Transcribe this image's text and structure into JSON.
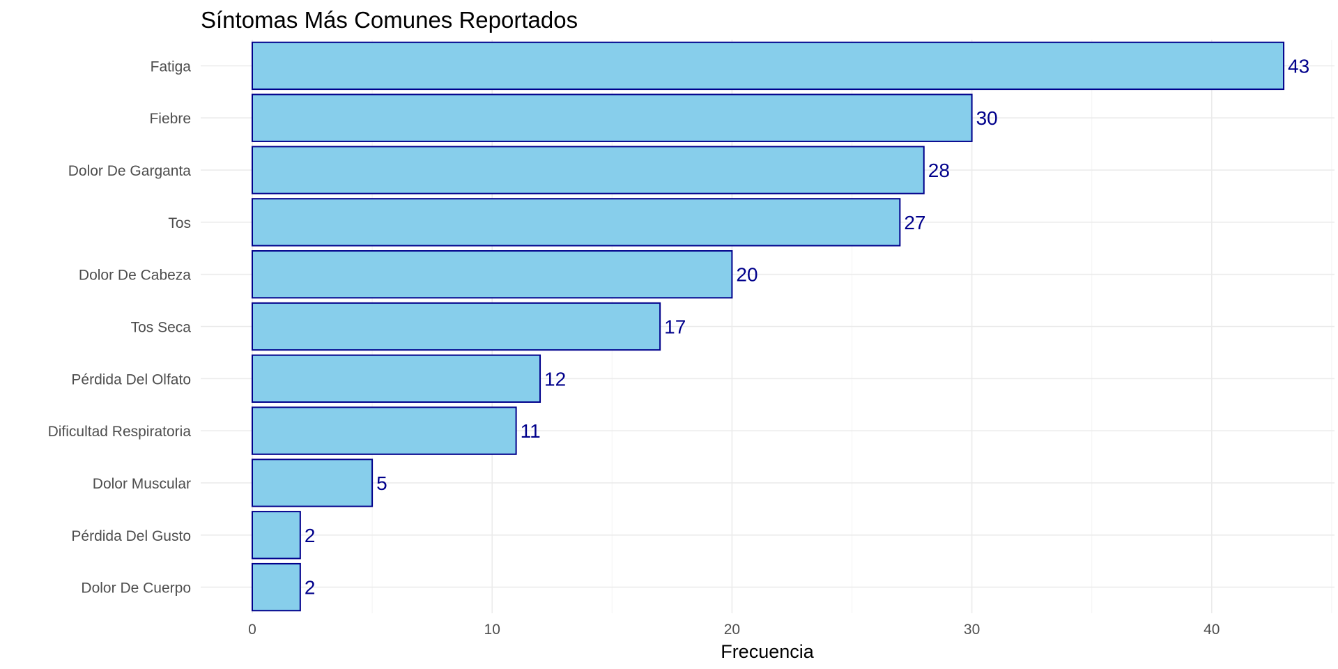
{
  "chart_data": {
    "type": "bar",
    "orientation": "horizontal",
    "title": "Síntomas Más Comunes Reportados",
    "xlabel": "Frecuencia",
    "ylabel": "",
    "categories": [
      "Fatiga",
      "Fiebre",
      "Dolor De Garganta",
      "Tos",
      "Dolor De Cabeza",
      "Tos Seca",
      "Pérdida Del Olfato",
      "Dificultad Respiratoria",
      "Dolor Muscular",
      "Pérdida Del Gusto",
      "Dolor De Cuerpo"
    ],
    "values": [
      43,
      30,
      28,
      27,
      20,
      17,
      12,
      11,
      5,
      2,
      2
    ],
    "data_labels": [
      "43",
      "30",
      "28",
      "27",
      "20",
      "17",
      "12",
      "11",
      "5",
      "2",
      "2"
    ],
    "xlim": [
      0,
      45
    ],
    "x_ticks": [
      0,
      10,
      20,
      30,
      40
    ],
    "x_tick_labels": [
      "0",
      "10",
      "20",
      "30",
      "40"
    ],
    "grid": true,
    "legend": "none",
    "colors": {
      "bar_fill": "#87CEEB",
      "bar_stroke": "#00008B",
      "label_text": "#00008B",
      "grid_major": "#EBEBEB",
      "grid_minor": "#F5F5F5",
      "axis_text": "#4D4D4D",
      "title_text": "#000000"
    }
  }
}
